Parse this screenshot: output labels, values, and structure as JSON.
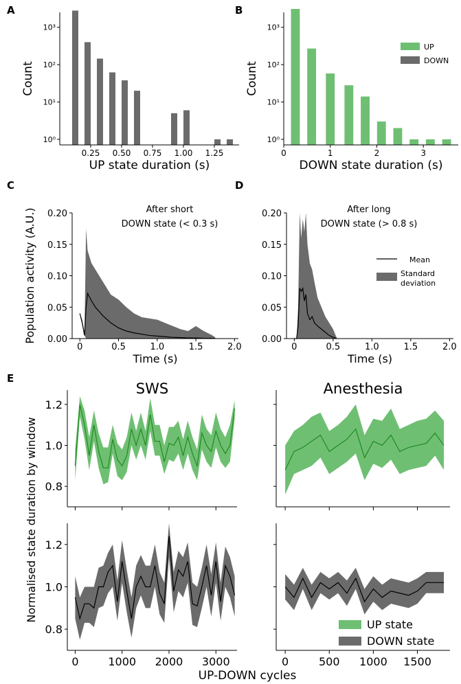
{
  "colors": {
    "up": "#6fbf73",
    "up_line": "#1f8a1f",
    "down": "#6b6b6b",
    "down_line": "#000000"
  },
  "chart_data": [
    {
      "panel": "A",
      "type": "bar",
      "log_y": true,
      "xlabel": "UP state duration (s)",
      "ylabel": "Count",
      "xlim": [
        0.0,
        1.45
      ],
      "ylim_exp": [
        -0.15,
        3.4
      ],
      "xticks": [
        0.25,
        0.5,
        0.75,
        1.0,
        1.25
      ],
      "xtick_labels": [
        "0.25",
        "0.50",
        "0.75",
        "1.00",
        "1.25"
      ],
      "yticks": [
        0,
        1,
        2,
        3
      ],
      "ytick_labels": [
        "10⁰",
        "10¹",
        "10²",
        "10³"
      ],
      "bar_width": 0.05,
      "x": [
        0.125,
        0.225,
        0.325,
        0.425,
        0.525,
        0.625,
        0.725,
        0.825,
        0.925,
        1.025,
        1.275,
        1.375
      ],
      "values": [
        2800,
        400,
        145,
        62,
        38,
        20,
        0,
        0,
        5,
        6,
        1,
        1
      ],
      "series_color": "down"
    },
    {
      "panel": "B",
      "type": "bar",
      "log_y": true,
      "xlabel": "DOWN state duration (s)",
      "ylabel": "Count",
      "xlim": [
        0.0,
        3.75
      ],
      "ylim_exp": [
        -0.15,
        3.4
      ],
      "xticks": [
        0,
        1,
        2,
        3
      ],
      "xtick_labels": [
        "0",
        "1",
        "2",
        "3"
      ],
      "yticks": [
        0,
        1,
        2,
        3
      ],
      "ytick_labels": [
        "10⁰",
        "10¹",
        "10²",
        "10³"
      ],
      "bar_width": 0.19,
      "x": [
        0.25,
        0.6,
        1.0,
        1.4,
        1.75,
        2.1,
        2.45,
        2.8,
        3.15,
        3.5
      ],
      "values": [
        3100,
        270,
        58,
        28,
        14,
        3,
        2,
        1,
        1,
        1
      ],
      "series_color": "up",
      "legend": [
        {
          "label": "UP",
          "color": "up"
        },
        {
          "label": "DOWN",
          "color": "down"
        }
      ]
    },
    {
      "panel": "C",
      "type": "area",
      "annotation": [
        "After short",
        "DOWN state (< 0.3 s)"
      ],
      "xlabel": "Time (s)",
      "ylabel": "Population activity (A.U.)",
      "xlim": [
        -0.1,
        2.05
      ],
      "ylim": [
        0,
        0.2
      ],
      "xticks": [
        0,
        0.5,
        1.0,
        1.5,
        2.0
      ],
      "xtick_labels": [
        "0",
        "0.5",
        "1.0",
        "1.5",
        "2.0"
      ],
      "yticks": [
        0,
        0.05,
        0.1,
        0.15,
        0.2
      ],
      "ytick_labels": [
        "0.00",
        "0.05",
        "0.10",
        "0.15",
        "0.20"
      ],
      "x": [
        0,
        0.03,
        0.06,
        0.08,
        0.1,
        0.15,
        0.2,
        0.3,
        0.4,
        0.5,
        0.6,
        0.7,
        0.8,
        0.9,
        1.0,
        1.1,
        1.2,
        1.3,
        1.4,
        1.5,
        1.6,
        1.7,
        1.75
      ],
      "mean": [
        0.04,
        0.025,
        0.005,
        0.05,
        0.072,
        0.06,
        0.05,
        0.036,
        0.025,
        0.017,
        0.012,
        0.009,
        0.007,
        0.005,
        0.004,
        0.003,
        0.002,
        0.0015,
        0.001,
        0.001,
        0.0005,
        0.0005,
        0.0
      ],
      "upper": [
        0.04,
        0.03,
        0.01,
        0.175,
        0.14,
        0.12,
        0.11,
        0.09,
        0.07,
        0.062,
        0.05,
        0.04,
        0.034,
        0.032,
        0.03,
        0.025,
        0.02,
        0.015,
        0.012,
        0.02,
        0.012,
        0.006,
        0.002
      ],
      "lower": [
        0.04,
        0.025,
        0.005,
        0.0,
        0.0,
        0.0,
        0.0,
        0.0,
        0.0,
        0.0,
        0.0,
        0.0,
        0.0,
        0.0,
        0.0,
        0.0,
        0.0,
        0.0,
        0.0,
        0.0,
        0.0,
        0.0,
        0.0
      ]
    },
    {
      "panel": "D",
      "type": "area",
      "annotation": [
        "After long",
        "DOWN state (> 0.8 s)"
      ],
      "xlabel": "Time (s)",
      "ylabel": "",
      "xlim": [
        -0.1,
        2.05
      ],
      "ylim": [
        0,
        0.2
      ],
      "xticks": [
        0,
        0.5,
        1.0,
        1.5,
        2.0
      ],
      "xtick_labels": [
        "0",
        "0.5",
        "1.0",
        "1.5",
        "2.0"
      ],
      "yticks": [
        0,
        0.05,
        0.1,
        0.15,
        0.2
      ],
      "ytick_labels": [
        "0.00",
        "0.05",
        "0.10",
        "0.15",
        "0.20"
      ],
      "x": [
        0.0,
        0.03,
        0.05,
        0.07,
        0.09,
        0.11,
        0.13,
        0.15,
        0.17,
        0.2,
        0.23,
        0.26,
        0.3,
        0.35,
        0.4,
        0.45,
        0.5,
        0.55
      ],
      "mean": [
        0.0,
        0.0,
        0.02,
        0.08,
        0.075,
        0.08,
        0.06,
        0.07,
        0.04,
        0.03,
        0.035,
        0.025,
        0.02,
        0.015,
        0.01,
        0.005,
        0.002,
        0.0
      ],
      "upper": [
        0.0,
        0.0,
        0.05,
        0.2,
        0.16,
        0.19,
        0.17,
        0.2,
        0.15,
        0.12,
        0.11,
        0.09,
        0.065,
        0.05,
        0.035,
        0.025,
        0.015,
        0.0
      ],
      "lower": [
        0.0,
        0.0,
        0.0,
        0.0,
        0.0,
        0.0,
        0.0,
        0.0,
        0.0,
        0.0,
        0.0,
        0.0,
        0.0,
        0.0,
        0.0,
        0.0,
        0.0,
        0.0
      ],
      "legend": [
        {
          "label": "Mean",
          "kind": "line"
        },
        {
          "label": "Standard deviation",
          "lines": [
            "Standard",
            "deviation"
          ],
          "kind": "patch"
        }
      ]
    },
    {
      "panel": "E-SWS-UP",
      "type": "line",
      "title": "SWS",
      "xlim": [
        -50,
        3450
      ],
      "ylim": [
        0.7,
        1.27
      ],
      "yticks": [
        0.8,
        1.0,
        1.2
      ],
      "ytick_labels": [
        "0.8",
        "1.0",
        "1.2"
      ],
      "xticks": [
        0,
        1000,
        2000,
        3000
      ],
      "xtick_labels": [],
      "x_step": 100,
      "series_color": "up",
      "mean": [
        0.9,
        1.2,
        1.1,
        0.95,
        1.1,
        0.97,
        0.89,
        0.89,
        1.03,
        0.93,
        0.9,
        0.95,
        1.08,
        1.0,
        1.08,
        1.0,
        1.15,
        1.02,
        1.02,
        0.92,
        1.01,
        1.0,
        1.04,
        0.95,
        1.04,
        0.96,
        0.9,
        1.06,
        1.0,
        0.97,
        1.07,
        1.0,
        0.96,
        1.0,
        1.18
      ],
      "upper": [
        0.98,
        1.24,
        1.17,
        1.04,
        1.17,
        1.06,
        0.99,
        0.99,
        1.1,
        1.01,
        0.98,
        1.04,
        1.16,
        1.07,
        1.16,
        1.07,
        1.23,
        1.1,
        1.1,
        1.0,
        1.09,
        1.09,
        1.12,
        1.03,
        1.12,
        1.04,
        0.98,
        1.15,
        1.08,
        1.05,
        1.16,
        1.08,
        1.04,
        1.1,
        1.22
      ],
      "lower": [
        0.83,
        1.14,
        1.03,
        0.88,
        1.02,
        0.89,
        0.81,
        0.82,
        0.96,
        0.85,
        0.83,
        0.87,
        1.0,
        0.93,
        1.0,
        0.93,
        1.07,
        0.95,
        0.95,
        0.86,
        0.93,
        0.92,
        0.96,
        0.88,
        0.96,
        0.88,
        0.83,
        0.98,
        0.92,
        0.89,
        0.99,
        0.92,
        0.89,
        0.92,
        1.13
      ]
    },
    {
      "panel": "E-Anesthesia-UP",
      "type": "line",
      "title": "Anesthesia",
      "xlim": [
        -40,
        1870
      ],
      "ylim": [
        0.7,
        1.27
      ],
      "yticks": [
        0.8,
        1.0,
        1.2
      ],
      "ytick_labels": [],
      "xticks": [
        0,
        500,
        1000,
        1500
      ],
      "xtick_labels": [],
      "x_step": 100,
      "series_color": "up",
      "mean": [
        0.88,
        0.97,
        0.99,
        1.02,
        1.05,
        0.97,
        1.0,
        1.03,
        1.08,
        0.94,
        1.02,
        1.0,
        1.05,
        0.97,
        0.99,
        1.0,
        1.01,
        1.06,
        1.0
      ],
      "upper": [
        1.0,
        1.07,
        1.1,
        1.14,
        1.16,
        1.07,
        1.1,
        1.14,
        1.2,
        1.05,
        1.13,
        1.12,
        1.18,
        1.08,
        1.1,
        1.12,
        1.13,
        1.17,
        1.12
      ],
      "lower": [
        0.76,
        0.86,
        0.88,
        0.9,
        0.94,
        0.86,
        0.89,
        0.92,
        0.96,
        0.83,
        0.91,
        0.89,
        0.93,
        0.86,
        0.88,
        0.89,
        0.9,
        0.95,
        0.88
      ]
    },
    {
      "panel": "E-SWS-DOWN",
      "type": "line",
      "title": "SWS",
      "xlim": [
        -50,
        3450
      ],
      "ylim": [
        0.7,
        1.3
      ],
      "yticks": [
        0.8,
        1.0,
        1.2
      ],
      "ytick_labels": [
        "0.8",
        "1.0",
        "1.2"
      ],
      "xticks": [
        0,
        1000,
        2000,
        3000
      ],
      "xtick_labels": [
        "0",
        "1000",
        "2000",
        "3000"
      ],
      "xlabel": "UP-DOWN cycles",
      "x_step": 100,
      "series_color": "down",
      "mean": [
        0.95,
        0.85,
        0.92,
        0.92,
        0.9,
        1.0,
        1.0,
        1.07,
        1.1,
        0.93,
        1.12,
        0.98,
        0.85,
        1.0,
        1.05,
        1.0,
        1.0,
        1.1,
        0.97,
        0.92,
        1.24,
        0.98,
        1.08,
        1.05,
        1.12,
        0.92,
        0.91,
        1.0,
        1.1,
        0.96,
        1.12,
        0.93,
        1.1,
        1.05,
        0.96
      ],
      "upper": [
        1.05,
        0.95,
        1.0,
        1.0,
        1.0,
        1.09,
        1.1,
        1.16,
        1.2,
        1.03,
        1.22,
        1.08,
        0.95,
        1.1,
        1.15,
        1.1,
        1.1,
        1.2,
        1.07,
        1.02,
        1.3,
        1.07,
        1.17,
        1.14,
        1.21,
        1.02,
        1.0,
        1.09,
        1.2,
        1.06,
        1.21,
        1.02,
        1.19,
        1.14,
        1.05
      ],
      "lower": [
        0.85,
        0.75,
        0.83,
        0.83,
        0.81,
        0.9,
        0.91,
        0.97,
        1.0,
        0.84,
        1.02,
        0.88,
        0.76,
        0.9,
        0.96,
        0.9,
        0.9,
        1.0,
        0.87,
        0.83,
        1.14,
        0.88,
        0.98,
        0.95,
        1.02,
        0.82,
        0.81,
        0.9,
        1.0,
        0.86,
        1.02,
        0.84,
        1.0,
        0.95,
        0.86
      ]
    },
    {
      "panel": "E-Anesthesia-DOWN",
      "type": "line",
      "title": "Anesthesia",
      "xlim": [
        -40,
        1870
      ],
      "ylim": [
        0.7,
        1.3
      ],
      "yticks": [
        0.8,
        1.0,
        1.2
      ],
      "ytick_labels": [],
      "xticks": [
        0,
        500,
        1000,
        1500
      ],
      "xtick_labels": [
        "0",
        "500",
        "1000",
        "1500"
      ],
      "x_step": 100,
      "series_color": "down",
      "mean": [
        1.0,
        0.95,
        1.04,
        0.95,
        1.02,
        0.99,
        1.02,
        0.97,
        1.04,
        0.93,
        0.99,
        0.95,
        0.98,
        0.97,
        0.96,
        0.98,
        1.02,
        1.02,
        1.02
      ],
      "upper": [
        1.06,
        1.01,
        1.09,
        1.01,
        1.07,
        1.04,
        1.07,
        1.03,
        1.09,
        0.99,
        1.05,
        1.01,
        1.04,
        1.03,
        1.02,
        1.04,
        1.07,
        1.07,
        1.07
      ],
      "lower": [
        0.94,
        0.89,
        0.99,
        0.89,
        0.97,
        0.94,
        0.97,
        0.91,
        0.99,
        0.87,
        0.93,
        0.89,
        0.92,
        0.91,
        0.9,
        0.92,
        0.97,
        0.97,
        0.97
      ],
      "legend": [
        {
          "label": "UP state",
          "color": "up"
        },
        {
          "label": "DOWN state",
          "color": "down"
        }
      ]
    }
  ],
  "panel_labels": [
    "A",
    "B",
    "C",
    "D",
    "E"
  ],
  "shared": {
    "ylabel_e": "Normalised state duration by window",
    "xlabel_e": "UP-DOWN cycles"
  }
}
